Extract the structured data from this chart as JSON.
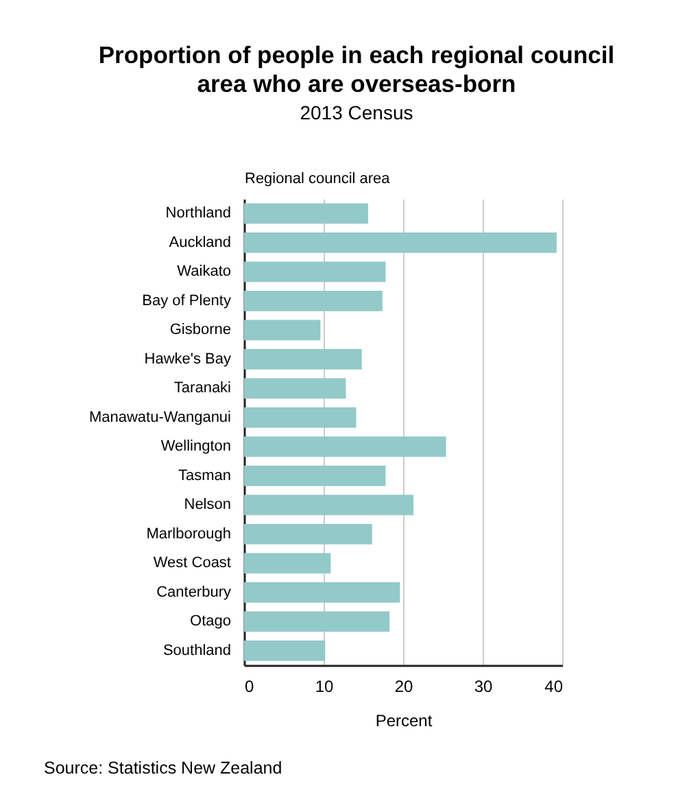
{
  "chart_data": {
    "type": "bar",
    "orientation": "horizontal",
    "title": "Proportion of people in each regional council area who are overseas-born",
    "subtitle": "2013 Census",
    "ylabel": "Regional council area",
    "xlabel": "Percent",
    "categories": [
      "Northland",
      "Auckland",
      "Waikato",
      "Bay of Plenty",
      "Gisborne",
      "Hawke's Bay",
      "Taranaki",
      "Manawatu-Wanganui",
      "Wellington",
      "Tasman",
      "Nelson",
      "Marlborough",
      "West Coast",
      "Canterbury",
      "Otago",
      "Southland"
    ],
    "values": [
      15.6,
      39.3,
      17.8,
      17.4,
      9.6,
      14.8,
      12.8,
      14.1,
      25.4,
      17.8,
      21.3,
      16.1,
      10.9,
      19.6,
      18.3,
      10.2
    ],
    "color": "#93c9c9",
    "xlim": [
      0,
      40
    ],
    "xticks": [
      0,
      10,
      20,
      30,
      40
    ],
    "grid": "x",
    "annotations": [
      "Source: Statistics New Zealand"
    ]
  }
}
